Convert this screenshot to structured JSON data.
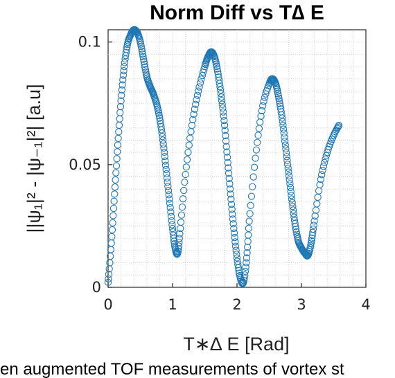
{
  "chart_data": {
    "type": "scatter",
    "title": "Norm Diff vs T∆ E",
    "xlabel": "T∗∆ E [Rad]",
    "ylabel": "||ψ₁|² - |ψ₋₁|²| [a.u]",
    "xlim": [
      0,
      4
    ],
    "ylim": [
      0,
      0.105
    ],
    "xticks": [
      "0",
      "1",
      "2",
      "3",
      "4"
    ],
    "yticks": [
      "0",
      "0.05",
      "0.1"
    ],
    "xtick_values": [
      0,
      1,
      2,
      3,
      4
    ],
    "ytick_values": [
      0,
      0.05,
      0.1
    ],
    "grid": true,
    "marker": "circle-open",
    "color": "#1f77b4",
    "series": [
      {
        "x": [
          0.0,
          0.05,
          0.1,
          0.15,
          0.2,
          0.25,
          0.3,
          0.35,
          0.4,
          0.45,
          0.5,
          0.55,
          0.6,
          0.65,
          0.7,
          0.75,
          0.8,
          0.85,
          0.9,
          0.95,
          1.0,
          1.04,
          1.08,
          1.12,
          1.2,
          1.3,
          1.4,
          1.5,
          1.55,
          1.6,
          1.65,
          1.7,
          1.75,
          1.8,
          1.85,
          1.9,
          1.95,
          2.0,
          2.05,
          2.1,
          2.15,
          2.2,
          2.3,
          2.4,
          2.5,
          2.55,
          2.6,
          2.65,
          2.7,
          2.75,
          2.8,
          2.85,
          2.9,
          2.95,
          3.0,
          3.05,
          3.1,
          3.15,
          3.2,
          3.3,
          3.4,
          3.5,
          3.58
        ],
        "y": [
          0.002,
          0.018,
          0.038,
          0.058,
          0.076,
          0.09,
          0.099,
          0.103,
          0.105,
          0.104,
          0.1,
          0.093,
          0.086,
          0.082,
          0.079,
          0.075,
          0.069,
          0.06,
          0.048,
          0.036,
          0.024,
          0.016,
          0.014,
          0.024,
          0.046,
          0.066,
          0.08,
          0.09,
          0.094,
          0.096,
          0.094,
          0.088,
          0.079,
          0.068,
          0.053,
          0.038,
          0.024,
          0.012,
          0.004,
          0.002,
          0.012,
          0.03,
          0.056,
          0.074,
          0.083,
          0.085,
          0.083,
          0.077,
          0.069,
          0.058,
          0.047,
          0.036,
          0.026,
          0.019,
          0.016,
          0.014,
          0.013,
          0.018,
          0.027,
          0.044,
          0.055,
          0.062,
          0.066
        ]
      }
    ]
  },
  "caption": "en augmented TOF measurements of vortex st"
}
